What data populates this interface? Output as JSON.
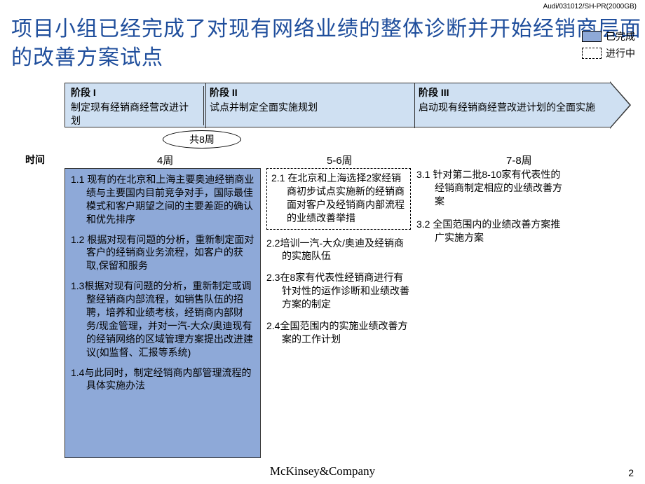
{
  "header": {
    "code": "Audi/031012/SH-PR(2000GB)"
  },
  "title": "项目小组已经完成了对现有网络业绩的整体诊断并开始经销商层面的改善方案试点",
  "legend": {
    "completed": "已完成",
    "inprogress": "进行中"
  },
  "phases": {
    "p1": {
      "title": "阶段 I",
      "desc": "制定现有经销商经营改进计划"
    },
    "p2": {
      "title": "阶段 II",
      "desc": "试点并制定全面实施规划"
    },
    "p3": {
      "title": "阶段 III",
      "desc": "启动现有经销商经营改进计划的全面实施"
    }
  },
  "totalWeeks": "共8周",
  "rowLabel": "时间",
  "colHeaders": {
    "c1": "4周",
    "c2": "5-6周",
    "c3": "7-8周"
  },
  "col1": {
    "i1": "1.1 现有的在北京和上海主要奥迪经销商业绩与主要国内目前竞争对手，国际最佳模式和客户期望之间的主要差距的确认和优先排序",
    "i2": "1.2 根据对现有问题的分析，重新制定面对客户的经销商业务流程，如客户的获取,保留和服务",
    "i3": "1.3根据对现有问题的分析，重新制定或调整经销商内部流程，如销售队伍的招聘，培养和业绩考核，经销商内部财务/现金管理，并对一汽-大众/奥迪现有的经销网络的区域管理方案提出改进建议(如监督、汇报等系统)",
    "i4": "1.4与此同时，制定经销商内部管理流程的具体实施办法"
  },
  "col2": {
    "i1": "2.1 在北京和上海选择2家经销商初步试点实施新的经销商面对客户及经销商内部流程的业绩改善举措",
    "i2": "2.2培训一汽-大众/奥迪及经销商的实施队伍",
    "i3": "2.3在8家有代表性经销商进行有针对性的运作诊断和业绩改善方案的制定",
    "i4": "2.4全国范围内的实施业绩改善方案的工作计划"
  },
  "col3": {
    "i1": "3.1  针对第二批8-10家有代表性的经销商制定相应的业绩改善方案",
    "i2": "3.2 全国范围内的业绩改善方案推广实施方案"
  },
  "footer": {
    "logo": "McKinsey&Company",
    "page": "2"
  },
  "colors": {
    "title": "#1f4e9c",
    "arrowFill": "#cfe0f2",
    "completedFill": "#8ea9d8",
    "border": "#333333",
    "background": "#ffffff"
  }
}
